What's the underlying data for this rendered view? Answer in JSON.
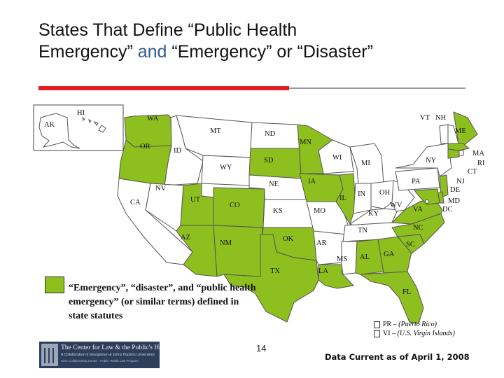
{
  "title": {
    "line1": "States That Define “Public Health",
    "line2_a": "Emergency” ",
    "line2_and": "and",
    "line2_b": " “Emergency” or “Disaster”"
  },
  "colors": {
    "defined": "#8dbf1f",
    "not_defined": "#ffffff",
    "accent": "#2e5a8f",
    "rule": "#e02020"
  },
  "states": {
    "AK": {
      "label": "AK",
      "defined": false
    },
    "HI": {
      "label": "HI",
      "defined": false
    },
    "WA": {
      "label": "WA",
      "defined": true
    },
    "OR": {
      "label": "OR",
      "defined": true
    },
    "CA": {
      "label": "CA",
      "defined": false
    },
    "ID": {
      "label": "ID",
      "defined": false
    },
    "NV": {
      "label": "NV",
      "defined": false
    },
    "MT": {
      "label": "MT",
      "defined": false
    },
    "WY": {
      "label": "WY",
      "defined": false
    },
    "UT": {
      "label": "UT",
      "defined": true
    },
    "AZ": {
      "label": "AZ",
      "defined": true
    },
    "CO": {
      "label": "CO",
      "defined": true
    },
    "NM": {
      "label": "NM",
      "defined": true
    },
    "ND": {
      "label": "ND",
      "defined": false
    },
    "SD": {
      "label": "SD",
      "defined": true
    },
    "NE": {
      "label": "NE",
      "defined": false
    },
    "KS": {
      "label": "KS",
      "defined": false
    },
    "OK": {
      "label": "OK",
      "defined": true
    },
    "TX": {
      "label": "TX",
      "defined": true
    },
    "MN": {
      "label": "MN",
      "defined": true
    },
    "IA": {
      "label": "IA",
      "defined": true
    },
    "MO": {
      "label": "MO",
      "defined": false
    },
    "AR": {
      "label": "AR",
      "defined": false
    },
    "LA": {
      "label": "LA",
      "defined": true
    },
    "WI": {
      "label": "WI",
      "defined": false
    },
    "IL": {
      "label": "IL",
      "defined": true
    },
    "MI": {
      "label": "MI",
      "defined": false
    },
    "IN": {
      "label": "IN",
      "defined": false
    },
    "OH": {
      "label": "OH",
      "defined": false
    },
    "KY": {
      "label": "KY",
      "defined": false
    },
    "TN": {
      "label": "TN",
      "defined": false
    },
    "MS": {
      "label": "MS",
      "defined": false
    },
    "AL": {
      "label": "AL",
      "defined": true
    },
    "GA": {
      "label": "GA",
      "defined": true
    },
    "FL": {
      "label": "FL",
      "defined": true
    },
    "SC": {
      "label": "SC",
      "defined": true
    },
    "NC": {
      "label": "NC",
      "defined": true
    },
    "VA": {
      "label": "VA",
      "defined": true
    },
    "WV": {
      "label": "WV",
      "defined": false
    },
    "PA": {
      "label": "PA",
      "defined": false
    },
    "NY": {
      "label": "NY",
      "defined": false
    },
    "VT": {
      "label": "VT",
      "defined": false
    },
    "NH": {
      "label": "NH",
      "defined": false
    },
    "ME": {
      "label": "ME",
      "defined": true
    },
    "MA": {
      "label": "MA",
      "defined": true
    },
    "RI": {
      "label": "RI",
      "defined": false
    },
    "CT": {
      "label": "CT",
      "defined": true
    },
    "NJ": {
      "label": "NJ",
      "defined": true
    },
    "DE": {
      "label": "DE",
      "defined": true
    },
    "MD": {
      "label": "MD",
      "defined": true
    },
    "DC": {
      "label": "DC",
      "defined": false
    }
  },
  "legend": {
    "text": "“Emergency”, “disaster”, and “public health emergency” (or similar terms) defined in state statutes"
  },
  "territories": [
    {
      "code": "PR",
      "name": "(Puerto Rico)",
      "defined": false
    },
    {
      "code": "VI",
      "name": "(U.S. Virgin Islands)",
      "defined": false
    }
  ],
  "logo": {
    "line1": "The Center for Law & the Public's Health",
    "line2": "A Collaborative of Georgetown & Johns Hopkins Universities",
    "line3": "CDC Collaborating Center · Public Health Law Program"
  },
  "page_number": "14",
  "data_current": "Data Current as of April 1, 2008"
}
